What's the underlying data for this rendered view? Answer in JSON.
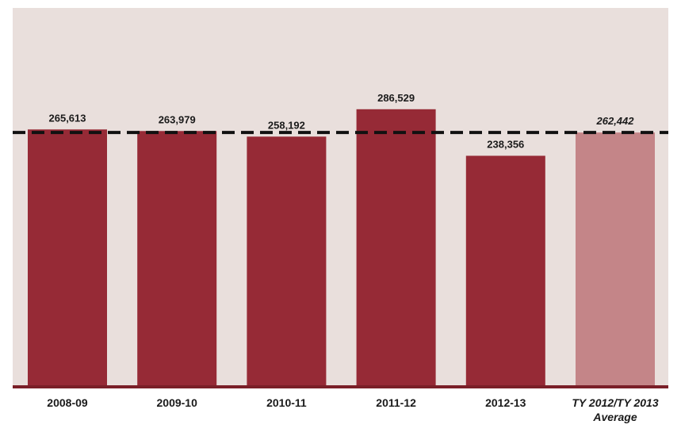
{
  "chart_data": {
    "type": "bar",
    "title": "",
    "xlabel": "",
    "ylabel": "",
    "ylim": [
      0,
      320000
    ],
    "categories": [
      "2008-09",
      "2009-10",
      "2010-11",
      "2011-12",
      "2012-13",
      "TY 2012/TY 2013 Average"
    ],
    "category_lines": [
      [
        "2008-09"
      ],
      [
        "2009-10"
      ],
      [
        "2010-11"
      ],
      [
        "2011-12"
      ],
      [
        "2012-13"
      ],
      [
        "TY 2012/TY 2013",
        "Average"
      ]
    ],
    "values": [
      265613,
      263979,
      258192,
      286529,
      238356,
      262442
    ],
    "value_labels": [
      "265,613",
      "263,979",
      "258,192",
      "286,529",
      "238,356",
      "262,442"
    ],
    "highlight_index": 5,
    "reference_line": {
      "value": 262442,
      "style": "dashed"
    },
    "grid": false,
    "legend": "none",
    "colors": {
      "plot_background": "#e9dfdc",
      "bar": "#962a36",
      "highlight_bar": "#c48588",
      "axis": "#7a1f28",
      "reference_line": "#111111"
    }
  }
}
